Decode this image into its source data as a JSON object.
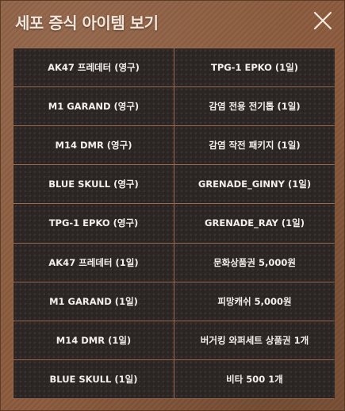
{
  "dialog": {
    "title": "세포 증식 아이템 보기",
    "close_icon": "close-x-icon"
  },
  "items": [
    {
      "left": "AK47 프레데터 (영구)",
      "right": "TPG-1 EPKO (1일)"
    },
    {
      "left": "M1 GARAND (영구)",
      "right": "감염 전용 전기톱 (1일)"
    },
    {
      "left": "M14 DMR (영구)",
      "right": "감염 작전 패키지 (1일)"
    },
    {
      "left": "BLUE SKULL (영구)",
      "right": "GRENADE_GINNY (1일)"
    },
    {
      "left": "TPG-1 EPKO (영구)",
      "right": "GRENADE_RAY (1일)"
    },
    {
      "left": "AK47 프레데터 (1일)",
      "right": "문화상품권 5,000원"
    },
    {
      "left": "M1 GARAND (1일)",
      "right": "피망캐쉬 5,000원"
    },
    {
      "left": "M14 DMR (1일)",
      "right": "버거킹 와퍼세트 상품권 1개"
    },
    {
      "left": "BLUE SKULL (1일)",
      "right": "비타 500 1개"
    }
  ]
}
